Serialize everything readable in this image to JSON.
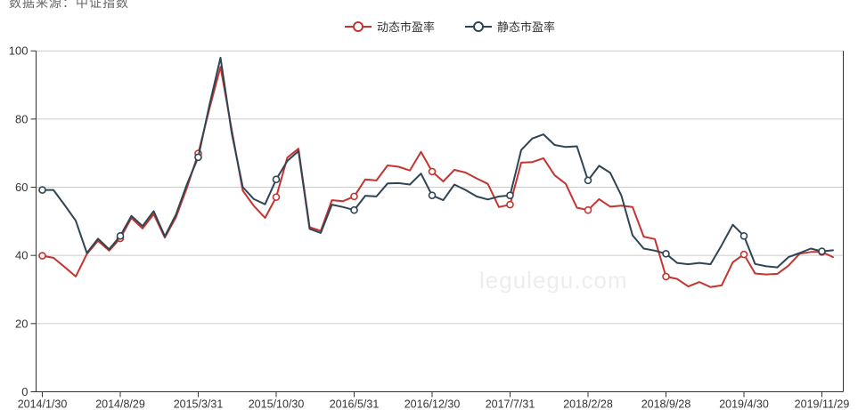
{
  "source_note": "数据来源：中证指数",
  "watermark": "legulegu.com",
  "legend": {
    "items": [
      {
        "label": "动态市盈率",
        "color": "#c23531"
      },
      {
        "label": "静态市盈率",
        "color": "#2f4554"
      }
    ]
  },
  "chart_data": {
    "type": "line",
    "title": "",
    "xlabel": "",
    "ylabel": "",
    "ylim": [
      0,
      100
    ],
    "y_ticks": [
      0,
      20,
      40,
      60,
      80,
      100
    ],
    "grid": true,
    "grid_color": "#cccccc",
    "axis_color": "#333333",
    "label_color": "#333333",
    "legend_position": "top-center",
    "x_tick_labels": [
      "2014/1/30",
      "2014/8/29",
      "2015/3/31",
      "2015/10/30",
      "2016/5/31",
      "2016/12/30",
      "2017/7/31",
      "2018/2/28",
      "2018/9/28",
      "2019/4/30",
      "2019/11/29"
    ],
    "x_tick_indices": [
      0,
      7,
      14,
      21,
      28,
      35,
      42,
      49,
      56,
      63,
      70
    ],
    "marker_indices": [
      0,
      7,
      14,
      21,
      28,
      35,
      42,
      49,
      56,
      63,
      70
    ],
    "x": [
      "2014/1",
      "2014/2",
      "2014/3",
      "2014/4",
      "2014/5",
      "2014/6",
      "2014/7",
      "2014/8",
      "2014/9",
      "2014/10",
      "2014/11",
      "2014/12",
      "2015/1",
      "2015/2",
      "2015/3",
      "2015/4",
      "2015/5",
      "2015/6",
      "2015/7",
      "2015/8",
      "2015/9",
      "2015/10",
      "2015/11",
      "2015/12",
      "2016/1",
      "2016/2",
      "2016/3",
      "2016/4",
      "2016/5",
      "2016/6",
      "2016/7",
      "2016/8",
      "2016/9",
      "2016/10",
      "2016/11",
      "2016/12",
      "2017/1",
      "2017/2",
      "2017/3",
      "2017/4",
      "2017/5",
      "2017/6",
      "2017/7",
      "2017/8",
      "2017/9",
      "2017/10",
      "2017/11",
      "2017/12",
      "2018/1",
      "2018/2",
      "2018/3",
      "2018/4",
      "2018/5",
      "2018/6",
      "2018/7",
      "2018/8",
      "2018/9",
      "2018/10",
      "2018/11",
      "2018/12",
      "2019/1",
      "2019/2",
      "2019/3",
      "2019/4",
      "2019/5",
      "2019/6",
      "2019/7",
      "2019/8",
      "2019/9",
      "2019/10",
      "2019/11",
      "2019/12"
    ],
    "series": [
      {
        "name": "动态市盈率",
        "color": "#c23531",
        "values": [
          39.9,
          39.3,
          36.6,
          33.8,
          40.4,
          44.3,
          41.4,
          45.0,
          51.0,
          47.9,
          52.1,
          45.2,
          51.2,
          60.0,
          69.9,
          83.0,
          95.3,
          77.0,
          59.0,
          54.5,
          51.0,
          57.1,
          68.7,
          71.3,
          48.3,
          47.2,
          56.2,
          55.9,
          57.3,
          62.3,
          62.0,
          66.4,
          66.0,
          64.9,
          70.4,
          64.6,
          61.7,
          65.1,
          64.3,
          62.6,
          61.0,
          54.2,
          54.9,
          67.2,
          67.4,
          68.5,
          63.5,
          61.0,
          54.0,
          53.3,
          56.5,
          54.3,
          54.6,
          54.2,
          45.5,
          44.8,
          33.8,
          33.1,
          30.9,
          32.2,
          30.7,
          31.2,
          38.0,
          40.3,
          34.7,
          34.4,
          34.6,
          37.0,
          40.5,
          41.0,
          41.0,
          39.5
        ]
      },
      {
        "name": "静态市盈率",
        "color": "#2f4554",
        "values": [
          59.2,
          59.2,
          54.8,
          50.2,
          40.7,
          44.9,
          41.8,
          45.7,
          51.6,
          48.6,
          53.0,
          45.6,
          52.0,
          61.0,
          68.8,
          84.0,
          98.0,
          76.0,
          60.0,
          56.5,
          55.0,
          62.3,
          67.7,
          70.6,
          47.8,
          46.6,
          54.9,
          54.2,
          53.3,
          57.5,
          57.3,
          61.1,
          61.2,
          60.8,
          64.0,
          57.6,
          56.2,
          60.8,
          59.2,
          57.3,
          56.4,
          57.3,
          57.6,
          70.9,
          74.3,
          75.5,
          72.4,
          71.8,
          72.0,
          62.0,
          66.3,
          64.2,
          57.5,
          45.9,
          42.0,
          41.4,
          40.5,
          37.8,
          37.4,
          37.8,
          37.4,
          43.0,
          49.0,
          45.7,
          37.5,
          36.8,
          36.5,
          39.5,
          40.7,
          42.0,
          41.2,
          41.5
        ]
      }
    ]
  }
}
